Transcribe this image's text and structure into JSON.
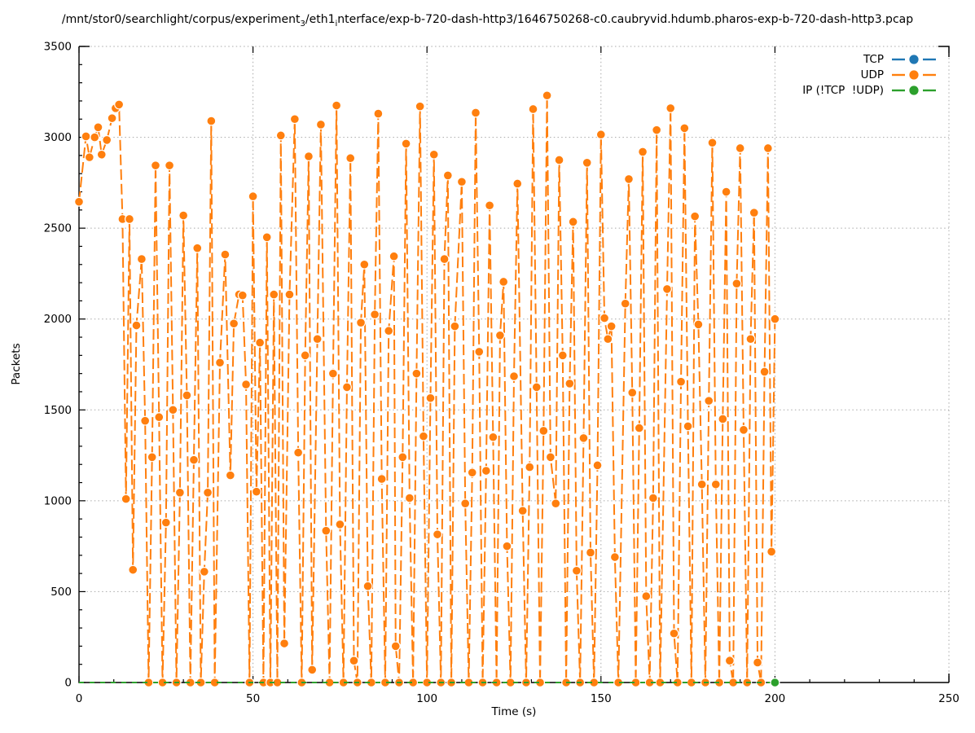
{
  "title": {
    "part1": "/mnt/stor0/searchlight/corpus/experiment",
    "sub1": "3",
    "part2": "/eth1",
    "sub2": "i",
    "part3": "nterface/exp-b-720-dash-http3/1646750268-c0.caubryvid.hdumb.pharos-exp-b-720-dash-http3.pcap"
  },
  "axes": {
    "xlabel": "Time (s)",
    "ylabel": "Packets"
  },
  "legend": {
    "position": "top-right"
  },
  "chart_data": {
    "type": "line",
    "title": "/mnt/stor0/searchlight/corpus/experiment_3/eth1_interface/exp-b-720-dash-http3/1646750268-c0.caubryvid.hdumb.pharos-exp-b-720-dash-http3.pcap",
    "xlabel": "Time (s)",
    "ylabel": "Packets",
    "xlim": [
      0,
      250
    ],
    "ylim": [
      0,
      3500
    ],
    "x_ticks": [
      0,
      50,
      100,
      150,
      200,
      250
    ],
    "y_ticks": [
      0,
      500,
      1000,
      1500,
      2000,
      2500,
      3000,
      3500
    ],
    "x_minor_step": 10,
    "y_minor_step": 100,
    "grid": true,
    "legend_position": "top-right",
    "series": [
      {
        "name": "TCP",
        "color": "#1f77b4",
        "markers": "list",
        "marker_points": [
          [
            200,
            0
          ]
        ],
        "points": [
          [
            0,
            0
          ],
          [
            200,
            0
          ]
        ]
      },
      {
        "name": "UDP",
        "color": "#ff7f0e",
        "markers": "all",
        "points": [
          [
            0,
            2645
          ],
          [
            2,
            3005
          ],
          [
            3,
            2890
          ],
          [
            4.5,
            3000
          ],
          [
            5.5,
            3055
          ],
          [
            6.5,
            2905
          ],
          [
            8,
            2985
          ],
          [
            9.5,
            3105
          ],
          [
            10.5,
            3160
          ],
          [
            11.5,
            3180
          ],
          [
            12.5,
            2550
          ],
          [
            13.5,
            1010
          ],
          [
            14.5,
            2550
          ],
          [
            15.5,
            620
          ],
          [
            16.5,
            1965
          ],
          [
            18,
            2330
          ],
          [
            19,
            1440
          ],
          [
            20,
            0
          ],
          [
            21,
            1240
          ],
          [
            22,
            2845
          ],
          [
            23,
            1460
          ],
          [
            24,
            0
          ],
          [
            25,
            880
          ],
          [
            26,
            2845
          ],
          [
            27,
            1500
          ],
          [
            28,
            0
          ],
          [
            29,
            1045
          ],
          [
            30,
            2570
          ],
          [
            31,
            1580
          ],
          [
            32,
            0
          ],
          [
            33,
            1225
          ],
          [
            34,
            2390
          ],
          [
            35,
            0
          ],
          [
            36,
            610
          ],
          [
            37,
            1045
          ],
          [
            38,
            3090
          ],
          [
            39,
            0
          ],
          [
            40.5,
            1760
          ],
          [
            42,
            2355
          ],
          [
            43.5,
            1140
          ],
          [
            44.5,
            1975
          ],
          [
            46,
            2135
          ],
          [
            47,
            2130
          ],
          [
            48,
            1640
          ],
          [
            49,
            0
          ],
          [
            50,
            2675
          ],
          [
            51,
            1050
          ],
          [
            52,
            1870
          ],
          [
            53,
            0
          ],
          [
            54,
            2450
          ],
          [
            55,
            0
          ],
          [
            56,
            2135
          ],
          [
            57,
            0
          ],
          [
            58,
            3010
          ],
          [
            59,
            215
          ],
          [
            60.5,
            2135
          ],
          [
            62,
            3100
          ],
          [
            63,
            1265
          ],
          [
            64,
            0
          ],
          [
            65,
            1800
          ],
          [
            66,
            2895
          ],
          [
            67,
            70
          ],
          [
            68.5,
            1890
          ],
          [
            69.5,
            3070
          ],
          [
            71,
            835
          ],
          [
            72,
            0
          ],
          [
            73,
            1700
          ],
          [
            74,
            3175
          ],
          [
            75,
            870
          ],
          [
            76,
            0
          ],
          [
            77,
            1625
          ],
          [
            78,
            2885
          ],
          [
            79,
            120
          ],
          [
            80,
            0
          ],
          [
            81,
            1980
          ],
          [
            82,
            2300
          ],
          [
            83,
            530
          ],
          [
            84,
            0
          ],
          [
            85,
            2025
          ],
          [
            86,
            3130
          ],
          [
            87,
            1120
          ],
          [
            88,
            0
          ],
          [
            89,
            1935
          ],
          [
            90.5,
            2345
          ],
          [
            91,
            200
          ],
          [
            92,
            0
          ],
          [
            93,
            1240
          ],
          [
            94,
            2965
          ],
          [
            95,
            1015
          ],
          [
            96,
            0
          ],
          [
            97,
            1700
          ],
          [
            98,
            3170
          ],
          [
            99,
            1355
          ],
          [
            100,
            0
          ],
          [
            101,
            1565
          ],
          [
            102,
            2905
          ],
          [
            103,
            815
          ],
          [
            104,
            0
          ],
          [
            105,
            2330
          ],
          [
            106,
            2790
          ],
          [
            107,
            0
          ],
          [
            108,
            1960
          ],
          [
            110,
            2755
          ],
          [
            111,
            985
          ],
          [
            112,
            0
          ],
          [
            113,
            1155
          ],
          [
            114,
            3135
          ],
          [
            115,
            1820
          ],
          [
            116,
            0
          ],
          [
            117,
            1165
          ],
          [
            118,
            2625
          ],
          [
            119,
            1350
          ],
          [
            120,
            0
          ],
          [
            121,
            1910
          ],
          [
            122,
            2205
          ],
          [
            123,
            750
          ],
          [
            124,
            0
          ],
          [
            125,
            1685
          ],
          [
            126,
            2745
          ],
          [
            127.5,
            945
          ],
          [
            128.5,
            0
          ],
          [
            129.5,
            1185
          ],
          [
            130.5,
            3155
          ],
          [
            131.5,
            1625
          ],
          [
            132.5,
            0
          ],
          [
            133.5,
            1385
          ],
          [
            134.5,
            3230
          ],
          [
            135.5,
            1240
          ],
          [
            137,
            985
          ],
          [
            138,
            2875
          ],
          [
            139,
            1800
          ],
          [
            140,
            0
          ],
          [
            141,
            1645
          ],
          [
            142,
            2535
          ],
          [
            143,
            615
          ],
          [
            144,
            0
          ],
          [
            145,
            1345
          ],
          [
            146,
            2860
          ],
          [
            147,
            715
          ],
          [
            148,
            0
          ],
          [
            149,
            1195
          ],
          [
            150,
            3015
          ],
          [
            151,
            2005
          ],
          [
            152,
            1890
          ],
          [
            153,
            1960
          ],
          [
            154,
            690
          ],
          [
            155,
            0
          ],
          [
            157,
            2085
          ],
          [
            158,
            2770
          ],
          [
            159,
            1595
          ],
          [
            160,
            0
          ],
          [
            161,
            1400
          ],
          [
            162,
            2920
          ],
          [
            163,
            475
          ],
          [
            164,
            0
          ],
          [
            165,
            1015
          ],
          [
            166,
            3040
          ],
          [
            167,
            0
          ],
          [
            169,
            2165
          ],
          [
            170,
            3160
          ],
          [
            171,
            270
          ],
          [
            172,
            0
          ],
          [
            173,
            1655
          ],
          [
            174,
            3050
          ],
          [
            175,
            1410
          ],
          [
            176,
            0
          ],
          [
            177,
            2565
          ],
          [
            178,
            1970
          ],
          [
            179,
            1090
          ],
          [
            180,
            0
          ],
          [
            181,
            1550
          ],
          [
            182,
            2970
          ],
          [
            183,
            1090
          ],
          [
            184,
            0
          ],
          [
            185,
            1450
          ],
          [
            186,
            2700
          ],
          [
            187,
            120
          ],
          [
            188,
            0
          ],
          [
            189,
            2195
          ],
          [
            190,
            2940
          ],
          [
            191,
            1390
          ],
          [
            192,
            0
          ],
          [
            193,
            1890
          ],
          [
            194,
            2585
          ],
          [
            195,
            110
          ],
          [
            196,
            0
          ],
          [
            197,
            1710
          ],
          [
            198,
            2940
          ],
          [
            199,
            720
          ],
          [
            200,
            2000
          ]
        ]
      },
      {
        "name": "IP (!TCP  !UDP)",
        "color": "#2ca02c",
        "markers": "list",
        "marker_points": [
          [
            200,
            0
          ]
        ],
        "points": [
          [
            0,
            0
          ],
          [
            200,
            0
          ]
        ]
      }
    ]
  }
}
